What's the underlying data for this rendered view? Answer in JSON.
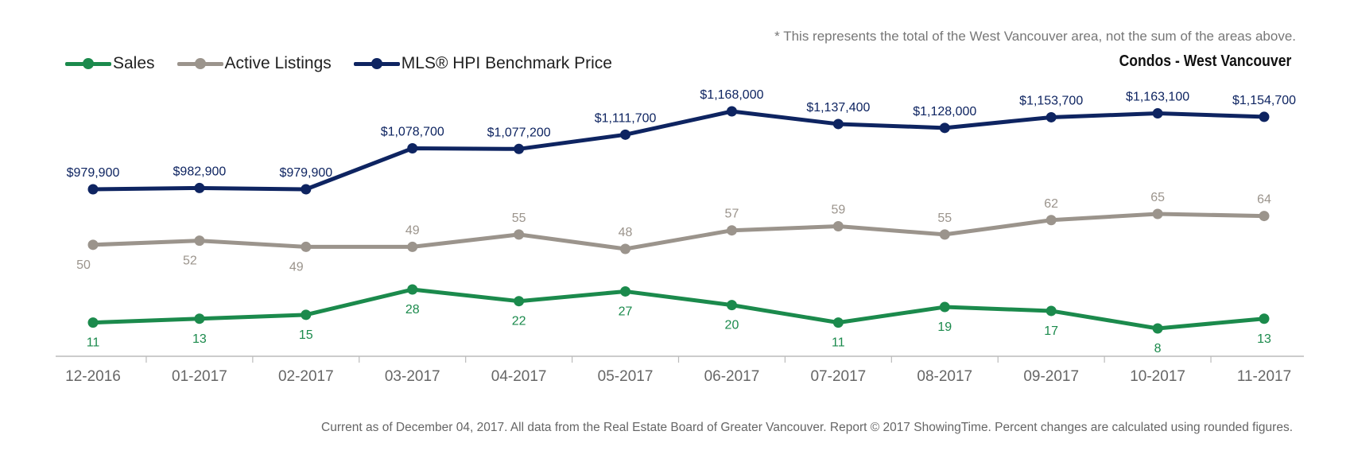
{
  "note": "* This represents the total of the West Vancouver area, not the sum of the areas above.",
  "footer": "Current as of December 04, 2017. All data from the Real Estate Board of Greater Vancouver. Report © 2017 ShowingTime. Percent changes are calculated using rounded figures.",
  "chart_data": {
    "type": "line",
    "title": "Condos - West Vancouver",
    "xlabel": "",
    "ylabel": "",
    "grid": false,
    "legend_position": "top-left",
    "categories": [
      "12-2016",
      "01-2017",
      "02-2017",
      "03-2017",
      "04-2017",
      "05-2017",
      "06-2017",
      "07-2017",
      "08-2017",
      "09-2017",
      "10-2017",
      "11-2017"
    ],
    "series": [
      {
        "name": "Sales",
        "color": "#1b8a4c",
        "values": [
          11,
          13,
          15,
          28,
          22,
          27,
          20,
          11,
          19,
          17,
          8,
          13
        ],
        "labels": [
          "11",
          "13",
          "15",
          "28",
          "22",
          "27",
          "20",
          "11",
          "19",
          "17",
          "8",
          "13"
        ]
      },
      {
        "name": "Active Listings",
        "color": "#9b948c",
        "values": [
          50,
          52,
          49,
          49,
          55,
          48,
          57,
          59,
          55,
          62,
          65,
          64
        ],
        "labels": [
          "50",
          "52",
          "49",
          "49",
          "55",
          "48",
          "57",
          "59",
          "55",
          "62",
          "65",
          "64"
        ]
      },
      {
        "name": "MLS® HPI Benchmark Price",
        "color": "#0e2461",
        "values": [
          979900,
          982900,
          979900,
          1078700,
          1077200,
          1111700,
          1168000,
          1137400,
          1128000,
          1153700,
          1163100,
          1154700
        ],
        "labels": [
          "$979,900",
          "$982,900",
          "$979,900",
          "$1,078,700",
          "$1,077,200",
          "$1,111,700",
          "$1,168,000",
          "$1,137,400",
          "$1,128,000",
          "$1,153,700",
          "$1,163,100",
          "$1,154,700"
        ]
      }
    ]
  }
}
